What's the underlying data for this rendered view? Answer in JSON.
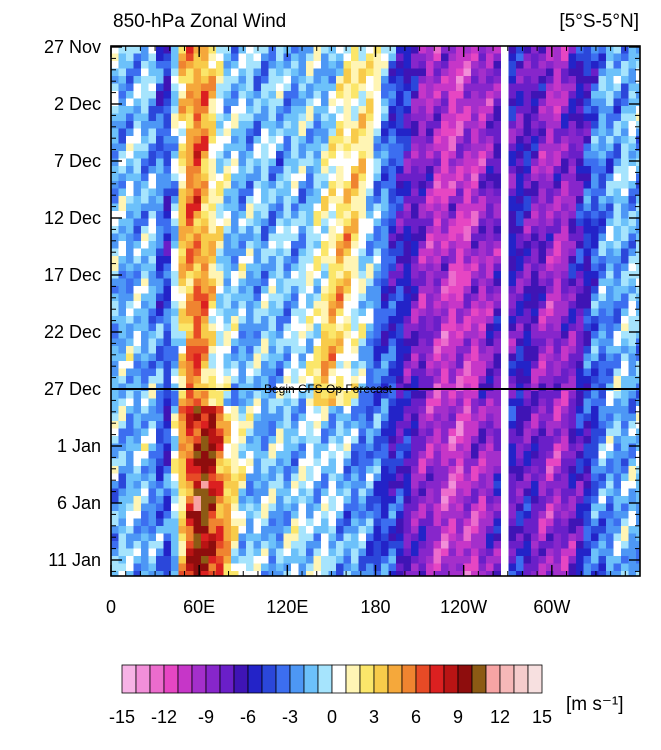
{
  "chart_data": {
    "type": "heatmap",
    "title": "850-hPa Zonal Wind",
    "region_label": "[5°S-5°N]",
    "units_label": "[m s⁻¹]",
    "annotation": "Begin GFS Op Forecast",
    "annotation_date": "27 Dec",
    "x_ticks": [
      {
        "label": "0",
        "lon": 0
      },
      {
        "label": "60E",
        "lon": 60
      },
      {
        "label": "120E",
        "lon": 120
      },
      {
        "label": "180",
        "lon": 180
      },
      {
        "label": "120W",
        "lon": 240
      },
      {
        "label": "60W",
        "lon": 300
      }
    ],
    "xlim": [
      0,
      360
    ],
    "y_ticks": [
      "27 Nov",
      "2 Dec",
      "7 Dec",
      "12 Dec",
      "17 Dec",
      "22 Dec",
      "27 Dec",
      "1 Jan",
      "6 Jan",
      "11 Jan"
    ],
    "y_tick_interval_days": 5,
    "colorbar": {
      "tick_labels": [
        "-15",
        "-12",
        "-9",
        "-6",
        "-3",
        "0",
        "3",
        "6",
        "9",
        "12",
        "15"
      ],
      "colors": [
        "#f7b3e6",
        "#f28fd9",
        "#ec6ccd",
        "#e646c3",
        "#c636c8",
        "#a42fcb",
        "#8726cb",
        "#6a1fc8",
        "#3f14b5",
        "#2323c8",
        "#2b47da",
        "#3c6ef0",
        "#4d97f5",
        "#6cc1fa",
        "#a6e4fd",
        "#ffffff",
        "#fff5b4",
        "#fbe66a",
        "#f8cb4a",
        "#f5a83b",
        "#ef8430",
        "#e74a26",
        "#db2020",
        "#b91414",
        "#8e0d0d",
        "#8c5a14",
        "#f7a4a4",
        "#f6b8b8",
        "#f5cccc",
        "#f7e0e0"
      ]
    }
  }
}
